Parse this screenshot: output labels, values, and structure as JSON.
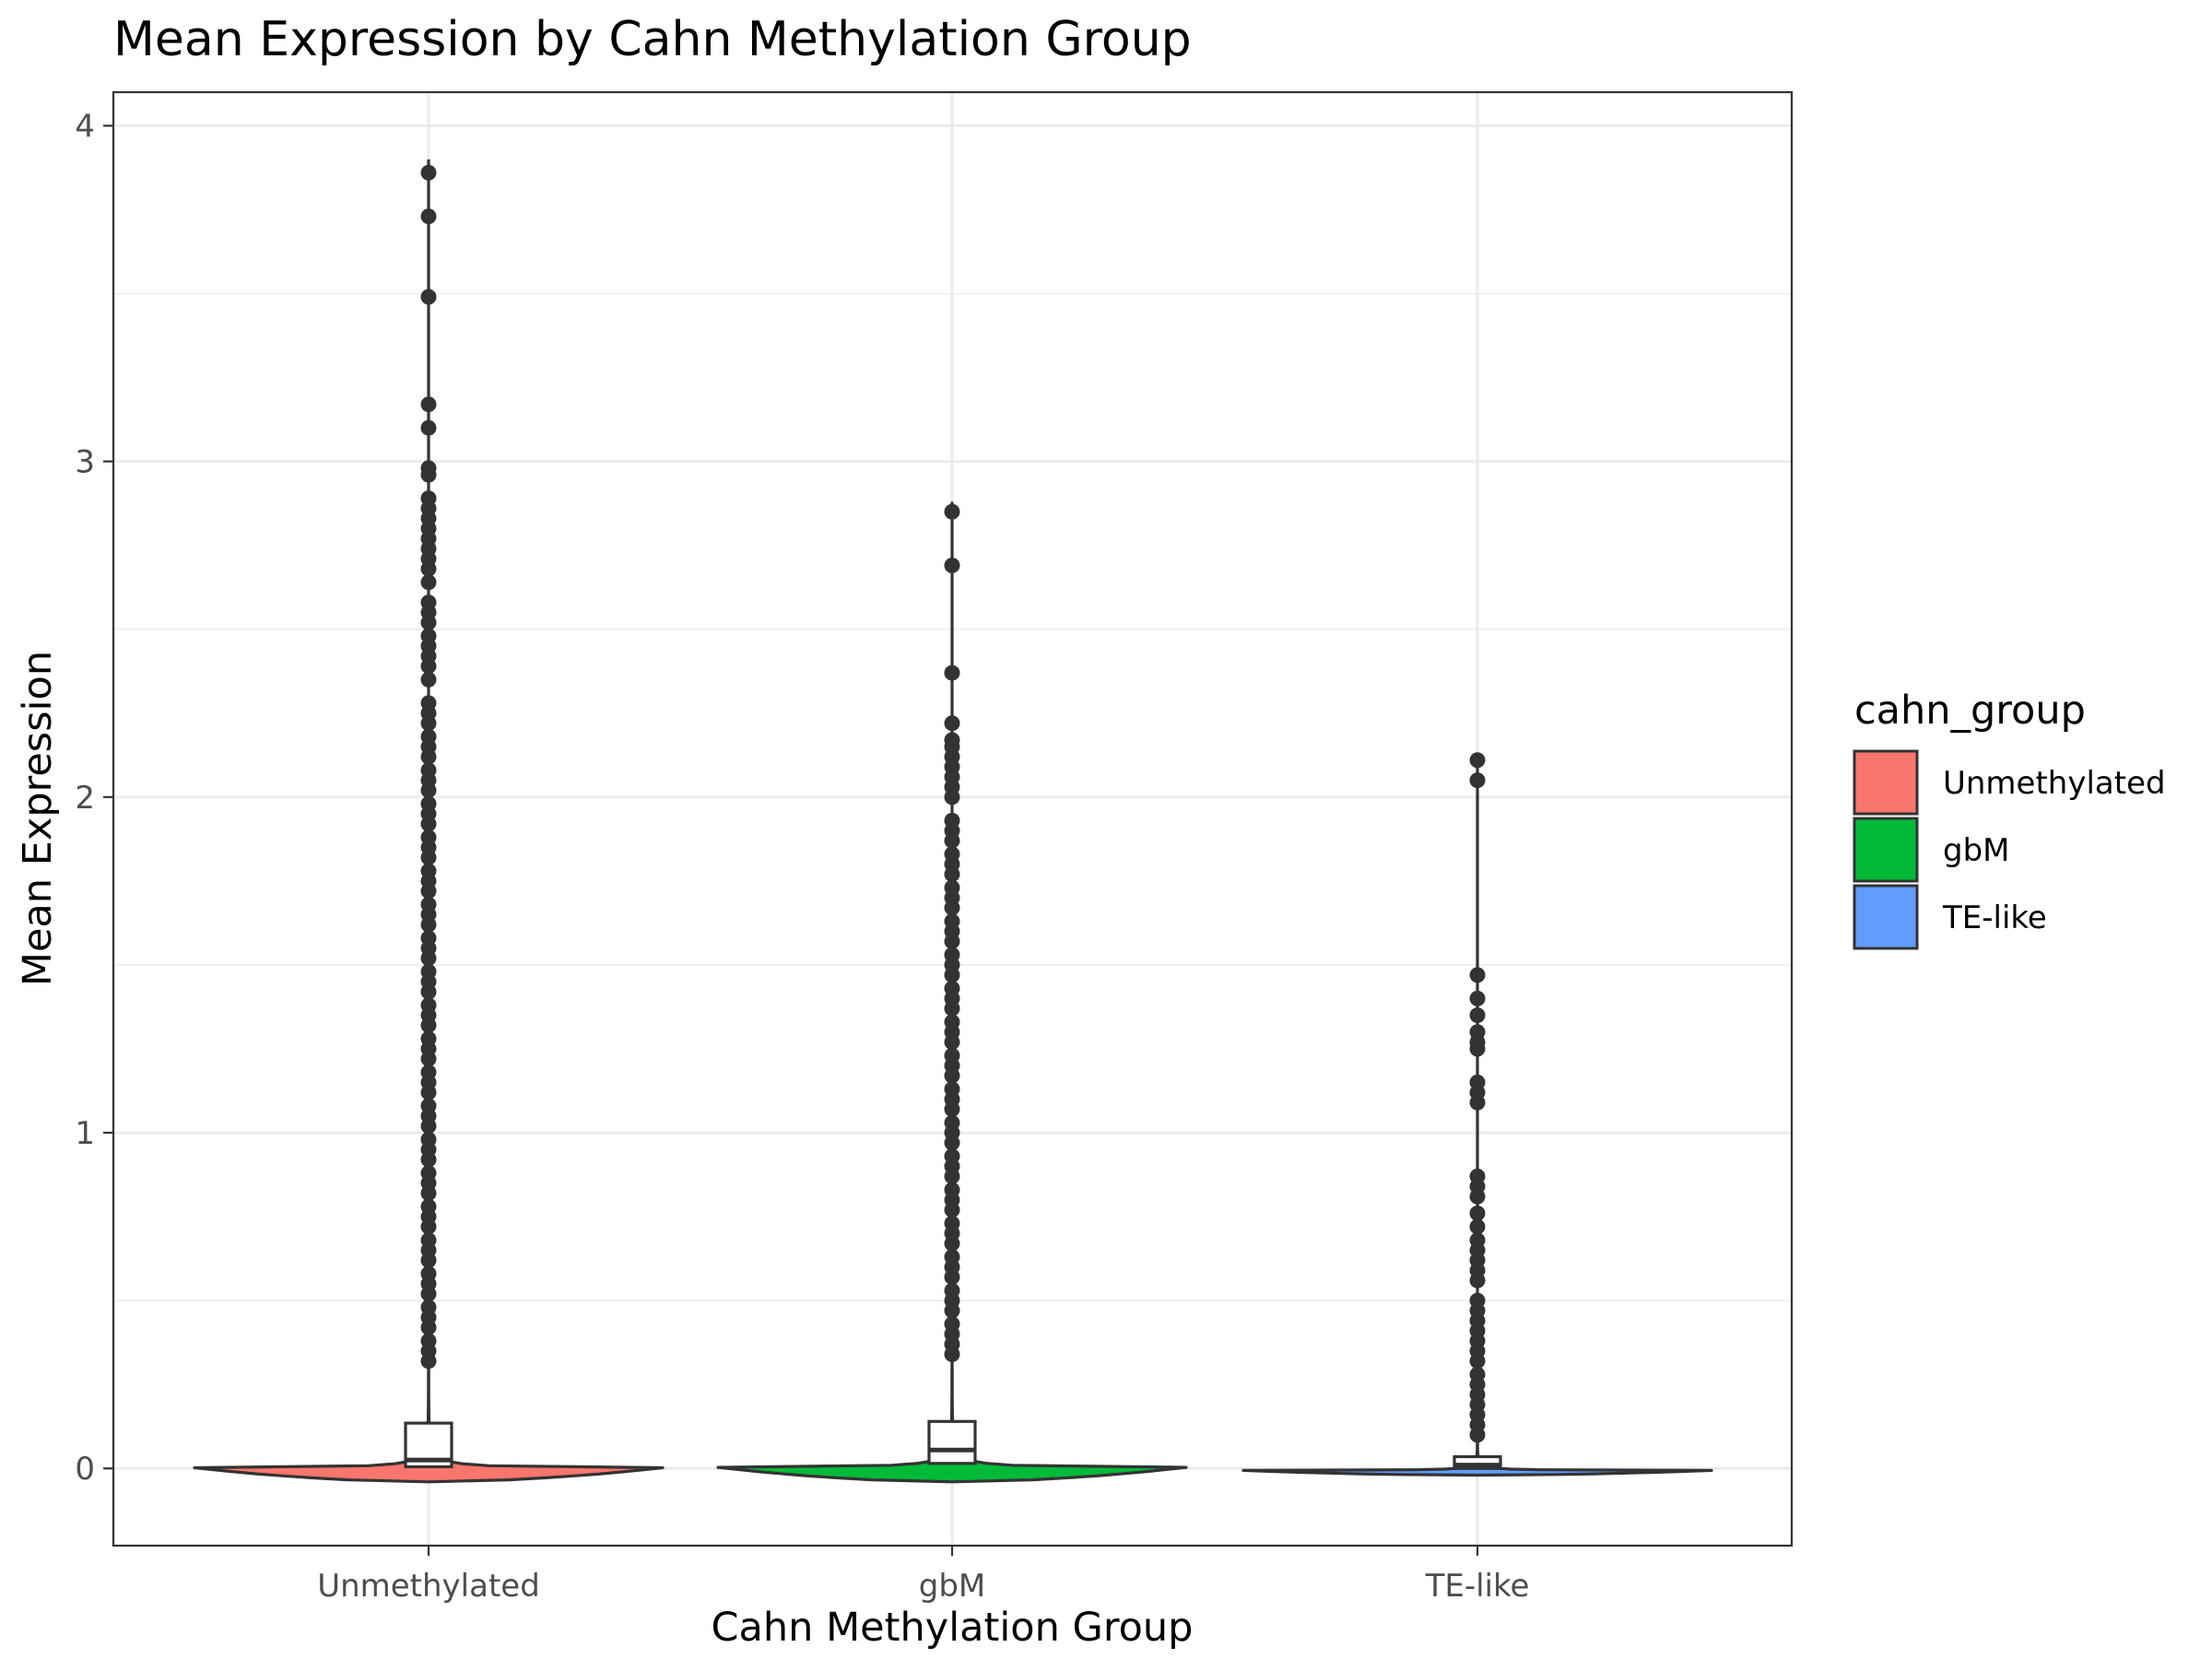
{
  "chart_data": {
    "type": "violin",
    "title": "Mean Expression by Cahn Methylation Group",
    "xlabel": "Cahn Methylation Group",
    "ylabel": "Mean Expression",
    "ylim": [
      -0.23,
      4.1
    ],
    "yticks": [
      0,
      1,
      2,
      3,
      4
    ],
    "grid": true,
    "legend": {
      "title": "cahn_group",
      "position": "right",
      "entries": [
        "Unmethylated",
        "gbM",
        "TE-like"
      ]
    },
    "categories": [
      "Unmethylated",
      "gbM",
      "TE-like"
    ],
    "series": [
      {
        "name": "Unmethylated",
        "color": "#F8766D",
        "box": {
          "q1": 0.005,
          "median": 0.025,
          "q3": 0.135,
          "whisker_high": 3.9
        },
        "violin_min": -0.04,
        "violin_max": 0.32,
        "outliers": [
          3.86,
          3.73,
          3.49,
          3.17,
          3.1,
          2.98,
          2.96,
          2.89,
          2.86,
          2.83,
          2.8,
          2.77,
          2.74,
          2.71,
          2.68,
          2.64,
          2.58,
          2.55,
          2.52,
          2.48,
          2.45,
          2.42,
          2.39,
          2.35,
          2.28,
          2.25,
          2.22,
          2.18,
          2.15,
          2.12,
          2.08,
          2.05,
          2.02,
          1.98,
          1.95,
          1.92,
          1.88,
          1.85,
          1.82,
          1.78,
          1.75,
          1.72,
          1.68,
          1.65,
          1.62,
          1.58,
          1.55,
          1.52,
          1.48,
          1.45,
          1.42,
          1.38,
          1.35,
          1.32,
          1.28,
          1.25,
          1.22,
          1.18,
          1.15,
          1.12,
          1.08,
          1.05,
          1.02,
          0.98,
          0.95,
          0.92,
          0.88,
          0.85,
          0.82,
          0.78,
          0.75,
          0.72,
          0.68,
          0.65,
          0.62,
          0.58,
          0.55,
          0.52,
          0.48,
          0.45,
          0.42,
          0.38,
          0.35,
          0.32
        ]
      },
      {
        "name": "gbM",
        "color": "#00BA38",
        "box": {
          "q1": 0.015,
          "median": 0.055,
          "q3": 0.14,
          "whisker_high": 2.88
        },
        "violin_min": -0.04,
        "violin_max": 0.33,
        "outliers": [
          2.85,
          2.69,
          2.37,
          2.22,
          2.17,
          2.15,
          2.12,
          2.09,
          2.06,
          2.03,
          2.0,
          1.93,
          1.9,
          1.87,
          1.83,
          1.8,
          1.77,
          1.73,
          1.7,
          1.67,
          1.63,
          1.6,
          1.57,
          1.53,
          1.5,
          1.47,
          1.43,
          1.4,
          1.37,
          1.33,
          1.3,
          1.27,
          1.23,
          1.2,
          1.17,
          1.13,
          1.1,
          1.07,
          1.03,
          1.0,
          0.97,
          0.93,
          0.9,
          0.87,
          0.83,
          0.8,
          0.77,
          0.73,
          0.7,
          0.67,
          0.63,
          0.6,
          0.57,
          0.53,
          0.5,
          0.47,
          0.43,
          0.4,
          0.37,
          0.34
        ]
      },
      {
        "name": "TE-like",
        "color": "#619CFF",
        "box": {
          "q1": 0.0,
          "median": 0.01,
          "q3": 0.035,
          "whisker_high": 2.11
        },
        "violin_min": -0.02,
        "violin_max": 0.1,
        "outliers": [
          2.11,
          2.05,
          1.47,
          1.4,
          1.35,
          1.3,
          1.27,
          1.25,
          1.15,
          1.12,
          1.09,
          0.87,
          0.84,
          0.81,
          0.76,
          0.72,
          0.68,
          0.65,
          0.62,
          0.59,
          0.56,
          0.5,
          0.47,
          0.44,
          0.41,
          0.38,
          0.35,
          0.32,
          0.28,
          0.25,
          0.22,
          0.19,
          0.16,
          0.13,
          0.1
        ]
      }
    ]
  }
}
